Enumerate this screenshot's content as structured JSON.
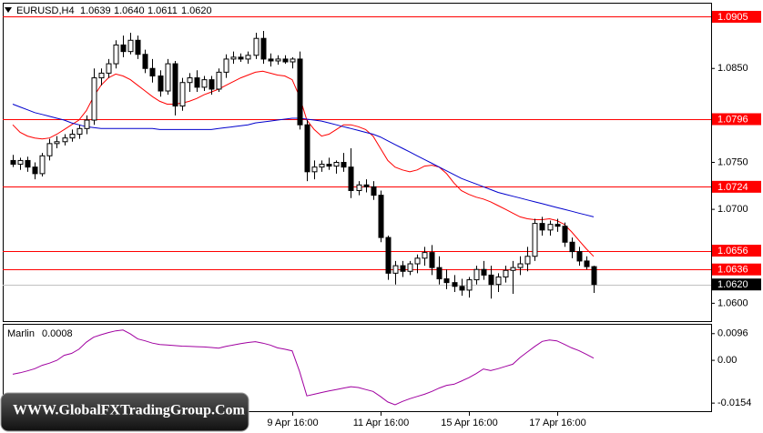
{
  "chart_data": {
    "type": "candlestick",
    "symbol": "EURUSD,H4",
    "header_quote": [
      {
        "value": 1.0639,
        "label": "1.0639"
      },
      {
        "value": 1.064,
        "label": "1.0640"
      },
      {
        "value": 1.0611,
        "label": "1.0611"
      },
      {
        "value": 1.062,
        "label": "1.0620"
      }
    ],
    "categories": [
      null,
      null,
      null,
      null,
      null,
      null,
      null,
      null,
      null,
      null,
      null,
      null,
      null,
      null,
      null,
      null,
      null,
      null,
      null,
      null,
      null,
      null,
      null,
      null,
      null,
      null,
      null,
      null,
      null,
      null,
      null,
      null,
      null,
      null,
      null,
      null,
      null,
      null,
      "9 Apr 16:00",
      null,
      null,
      null,
      null,
      null,
      null,
      null,
      null,
      null,
      null,
      null,
      "11 Apr 16:00",
      null,
      null,
      null,
      null,
      null,
      null,
      null,
      null,
      null,
      null,
      null,
      "15 Apr 16:00",
      null,
      null,
      null,
      null,
      null,
      null,
      null,
      null,
      null,
      null,
      null,
      "17 Apr 16:00",
      null,
      null,
      null,
      null,
      null
    ],
    "open": [
      1.0752,
      1.0748,
      1.0752,
      1.0745,
      1.0738,
      1.0757,
      1.077,
      1.0772,
      1.0776,
      1.078,
      1.0786,
      1.0795,
      1.084,
      1.0845,
      1.0855,
      1.0875,
      1.0868,
      1.088,
      1.0865,
      1.085,
      1.0842,
      1.0826,
      1.0855,
      1.081,
      1.0835,
      1.084,
      1.083,
      1.0838,
      1.0828,
      1.0846,
      1.086,
      1.0862,
      1.086,
      1.0864,
      1.0882,
      1.086,
      1.0858,
      1.086,
      1.0857,
      1.086,
      1.079,
      1.074,
      1.0745,
      1.0748,
      1.0746,
      1.075,
      1.0745,
      1.072,
      1.0726,
      1.0724,
      1.0715,
      1.067,
      1.0632,
      1.064,
      1.0634,
      1.0642,
      1.0648,
      1.0654,
      1.0638,
      1.0626,
      1.0622,
      1.0618,
      1.0614,
      1.0625,
      1.0636,
      1.063,
      1.062,
      1.0628,
      1.0635,
      1.0638,
      1.0642,
      1.065,
      1.0685,
      1.0678,
      1.0684,
      1.0682,
      1.0665,
      1.0655,
      1.0645,
      1.0639
    ],
    "high": [
      1.0758,
      1.0755,
      1.0756,
      1.075,
      1.076,
      1.0775,
      1.0778,
      1.078,
      1.0785,
      1.079,
      1.08,
      1.085,
      1.085,
      1.086,
      1.088,
      1.0885,
      1.0888,
      1.0885,
      1.087,
      1.086,
      1.0848,
      1.086,
      1.0858,
      1.084,
      1.0845,
      1.0848,
      1.0842,
      1.0842,
      1.085,
      1.0865,
      1.0868,
      1.0866,
      1.0868,
      1.0888,
      1.089,
      1.0866,
      1.0864,
      1.0864,
      1.0862,
      1.0868,
      1.0795,
      1.0752,
      1.0752,
      1.0755,
      1.0752,
      1.076,
      1.0765,
      1.073,
      1.0732,
      1.073,
      1.072,
      1.0672,
      1.0645,
      1.0645,
      1.0645,
      1.0652,
      1.066,
      1.0662,
      1.065,
      1.0636,
      1.063,
      1.0626,
      1.0628,
      1.064,
      1.0645,
      1.064,
      1.0632,
      1.064,
      1.0645,
      1.065,
      1.066,
      1.069,
      1.0692,
      1.0688,
      1.069,
      1.0686,
      1.067,
      1.066,
      1.065,
      1.064
    ],
    "low": [
      1.0745,
      1.0742,
      1.074,
      1.0732,
      1.0735,
      1.0752,
      1.0765,
      1.0768,
      1.0772,
      1.0775,
      1.078,
      1.079,
      1.0832,
      1.084,
      1.085,
      1.0862,
      1.0865,
      1.086,
      1.0845,
      1.0835,
      1.082,
      1.0822,
      1.08,
      1.0805,
      1.0825,
      1.0825,
      1.0826,
      1.0822,
      1.0825,
      1.084,
      1.0855,
      1.0857,
      1.0855,
      1.086,
      1.0855,
      1.0852,
      1.0854,
      1.0855,
      1.085,
      1.0785,
      1.073,
      1.0732,
      1.074,
      1.0742,
      1.0738,
      1.074,
      1.0712,
      1.0715,
      1.0718,
      1.071,
      1.0665,
      1.0625,
      1.062,
      1.0628,
      1.063,
      1.0632,
      1.064,
      1.063,
      1.062,
      1.0615,
      1.0612,
      1.0608,
      1.0606,
      1.062,
      1.0625,
      1.0605,
      1.0612,
      1.0622,
      1.061,
      1.063,
      1.0634,
      1.0645,
      1.0672,
      1.0672,
      1.0676,
      1.066,
      1.0648,
      1.064,
      1.0636,
      1.0611
    ],
    "close": [
      1.0748,
      1.0752,
      1.0745,
      1.0738,
      1.0757,
      1.077,
      1.0772,
      1.0776,
      1.078,
      1.0786,
      1.0795,
      1.084,
      1.0845,
      1.0855,
      1.0875,
      1.0868,
      1.088,
      1.0865,
      1.085,
      1.0842,
      1.0826,
      1.0855,
      1.081,
      1.0835,
      1.084,
      1.083,
      1.0838,
      1.0828,
      1.0846,
      1.086,
      1.0862,
      1.086,
      1.0864,
      1.0882,
      1.086,
      1.0858,
      1.086,
      1.0857,
      1.086,
      1.079,
      1.074,
      1.0745,
      1.0748,
      1.0746,
      1.075,
      1.0745,
      1.072,
      1.0726,
      1.0724,
      1.0715,
      1.067,
      1.0632,
      1.064,
      1.0634,
      1.0642,
      1.0648,
      1.0654,
      1.0638,
      1.0626,
      1.0622,
      1.0618,
      1.0614,
      1.0625,
      1.0636,
      1.063,
      1.062,
      1.0628,
      1.0635,
      1.0638,
      1.0642,
      1.065,
      1.0685,
      1.0678,
      1.0684,
      1.0682,
      1.0665,
      1.0655,
      1.0645,
      1.0639,
      1.062
    ],
    "up_color": "#ffffff",
    "down_color": "#000000",
    "wick_color": "#000000",
    "moving_averages": [
      {
        "color": "#ff0000",
        "values": [
          1.079,
          1.0782,
          1.0778,
          1.0776,
          1.0775,
          1.0776,
          1.078,
          1.0785,
          1.079,
          1.0795,
          1.0805,
          1.082,
          1.0832,
          1.084,
          1.0844,
          1.0842,
          1.0838,
          1.0832,
          1.0826,
          1.082,
          1.0815,
          1.0812,
          1.0812,
          1.0813,
          1.0815,
          1.0818,
          1.0822,
          1.0825,
          1.0828,
          1.0832,
          1.0836,
          1.084,
          1.0843,
          1.0846,
          1.0847,
          1.0845,
          1.0843,
          1.0842,
          1.0838,
          1.082,
          1.0795,
          1.0785,
          1.0778,
          1.078,
          1.0785,
          1.079,
          1.079,
          1.0788,
          1.0785,
          1.0778,
          1.0765,
          1.0752,
          1.0745,
          1.0742,
          1.074,
          1.0742,
          1.0746,
          1.0747,
          1.0745,
          1.0738,
          1.0728,
          1.072,
          1.0716,
          1.0713,
          1.0711,
          1.0708,
          1.0704,
          1.07,
          1.0696,
          1.0692,
          1.069,
          1.0689,
          1.0689,
          1.069,
          1.0688,
          1.0684,
          1.0676,
          1.0667,
          1.0658,
          1.065
        ]
      },
      {
        "color": "#0000cd",
        "values": [
          1.0812,
          1.0809,
          1.0806,
          1.0803,
          1.0801,
          1.0799,
          1.0797,
          1.0795,
          1.0792,
          1.079,
          1.0788,
          1.0787,
          1.0786,
          1.0786,
          1.0786,
          1.0786,
          1.0786,
          1.0786,
          1.0786,
          1.0786,
          1.0785,
          1.0785,
          1.0785,
          1.0785,
          1.0785,
          1.0785,
          1.0785,
          1.0785,
          1.0786,
          1.0787,
          1.0788,
          1.0789,
          1.079,
          1.0792,
          1.0793,
          1.0794,
          1.0795,
          1.0796,
          1.0797,
          1.0797,
          1.0796,
          1.0795,
          1.0794,
          1.0792,
          1.079,
          1.0788,
          1.0786,
          1.0784,
          1.0782,
          1.078,
          1.0777,
          1.0773,
          1.0769,
          1.0765,
          1.0761,
          1.0757,
          1.0753,
          1.0749,
          1.0745,
          1.0741,
          1.0737,
          1.0733,
          1.073,
          1.0727,
          1.0724,
          1.0721,
          1.0718,
          1.0716,
          1.0714,
          1.0712,
          1.071,
          1.0708,
          1.0706,
          1.0704,
          1.0702,
          1.07,
          1.0698,
          1.0696,
          1.0694,
          1.0692
        ]
      }
    ],
    "ylim": [
      1.0581,
      1.0919
    ],
    "yticks": [
      {
        "value": 1.085,
        "label": "1.0850"
      },
      {
        "value": 1.075,
        "label": "1.0750"
      },
      {
        "value": 1.07,
        "label": "1.0700"
      },
      {
        "value": 1.06,
        "label": "1.0600"
      }
    ],
    "levels": [
      1.0905,
      1.0796,
      1.0724,
      1.0656,
      1.0636
    ],
    "level_color": "#ff0000",
    "bid": {
      "value": 1.062,
      "label": "1.0620"
    },
    "bid_color": "#c0c0c0",
    "indicator": {
      "name": "Marlin",
      "color": "#a000a0",
      "values": [
        -0.005,
        -0.0045,
        -0.0038,
        -0.003,
        -0.0018,
        -0.001,
        0.0,
        0.0018,
        0.0025,
        0.004,
        0.0065,
        0.0083,
        0.0092,
        0.01,
        0.0106,
        0.0109,
        0.0095,
        0.0077,
        0.007,
        0.0062,
        0.0057,
        0.0055,
        0.0053,
        0.0051,
        0.005,
        0.0049,
        0.0048,
        0.0046,
        0.0044,
        0.005,
        0.0055,
        0.006,
        0.0064,
        0.0067,
        0.0062,
        0.0055,
        0.0045,
        0.004,
        0.0034,
        -0.004,
        -0.0128,
        -0.0122,
        -0.0116,
        -0.011,
        -0.0105,
        -0.01,
        -0.0095,
        -0.0098,
        -0.0105,
        -0.0112,
        -0.013,
        -0.015,
        -0.016,
        -0.0148,
        -0.0138,
        -0.013,
        -0.0122,
        -0.0112,
        -0.01,
        -0.009,
        -0.0086,
        -0.0075,
        -0.0063,
        -0.0048,
        -0.0031,
        -0.0037,
        -0.003,
        -0.0022,
        -0.0014,
        0.001,
        0.003,
        0.005,
        0.0068,
        0.0073,
        0.007,
        0.0058,
        0.0045,
        0.0035,
        0.0022,
        0.0008
      ],
      "ylim": [
        -0.0183,
        0.0128
      ],
      "yticks": [
        0.0096,
        {
          "value": 0,
          "label": "0.00"
        },
        -0.0154
      ]
    },
    "watermark": "WWW.GlobalFXTradingGroup.Com"
  }
}
